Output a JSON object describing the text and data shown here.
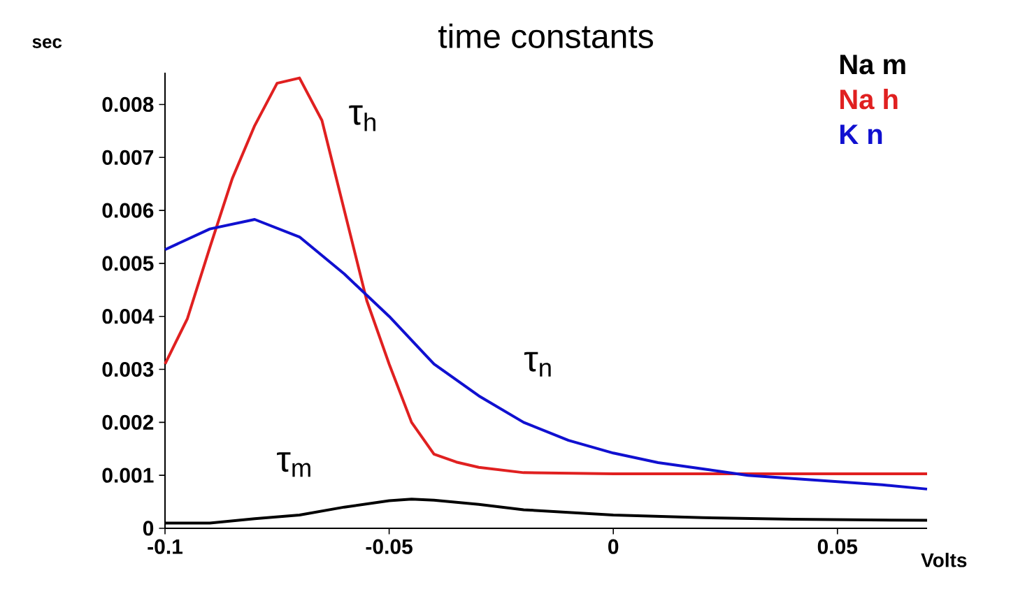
{
  "chart_data": {
    "type": "line",
    "title": "time constants",
    "xlabel": "Volts",
    "ylabel": "sec",
    "xlim": [
      -0.1,
      0.07
    ],
    "ylim": [
      0,
      0.0086
    ],
    "xticks": [
      -0.1,
      -0.05,
      0,
      0.05
    ],
    "yticks": [
      0,
      0.001,
      0.002,
      0.003,
      0.004,
      0.005,
      0.006,
      0.007,
      0.008
    ],
    "grid": false,
    "legend": "top right",
    "marker": "none",
    "line_style": "solid",
    "series": [
      {
        "name": "Na m",
        "color": "#000000",
        "x": [
          -0.1,
          -0.09,
          -0.08,
          -0.07,
          -0.06,
          -0.05,
          -0.045,
          -0.04,
          -0.03,
          -0.02,
          -0.01,
          0,
          0.02,
          0.04,
          0.07
        ],
        "values": [
          0.0001,
          0.0001,
          0.00018,
          0.00025,
          0.0004,
          0.00052,
          0.00055,
          0.00053,
          0.00045,
          0.00035,
          0.0003,
          0.00025,
          0.0002,
          0.00017,
          0.00015
        ]
      },
      {
        "name": "Na h",
        "color": "#e02020",
        "x": [
          -0.1,
          -0.095,
          -0.09,
          -0.085,
          -0.08,
          -0.075,
          -0.07,
          -0.065,
          -0.06,
          -0.055,
          -0.05,
          -0.045,
          -0.04,
          -0.035,
          -0.03,
          -0.02,
          0,
          0.07
        ],
        "values": [
          0.0031,
          0.00396,
          0.0053,
          0.0066,
          0.0076,
          0.0084,
          0.0085,
          0.0077,
          0.006,
          0.0043,
          0.0031,
          0.002,
          0.0014,
          0.00125,
          0.00115,
          0.00105,
          0.00103,
          0.00103
        ]
      },
      {
        "name": "K n",
        "color": "#1010d0",
        "x": [
          -0.1,
          -0.09,
          -0.08,
          -0.07,
          -0.06,
          -0.05,
          -0.04,
          -0.03,
          -0.02,
          -0.01,
          0,
          0.01,
          0.02,
          0.03,
          0.04,
          0.05,
          0.06,
          0.07
        ],
        "values": [
          0.00526,
          0.00565,
          0.00583,
          0.0055,
          0.0048,
          0.004,
          0.0031,
          0.0025,
          0.002,
          0.00166,
          0.00142,
          0.00124,
          0.00112,
          0.001,
          0.00094,
          0.00088,
          0.00082,
          0.00074
        ]
      }
    ],
    "annotations": [
      "τ$_{h}$",
      "τ$_{n}$",
      "τ$_{m}$"
    ]
  }
}
